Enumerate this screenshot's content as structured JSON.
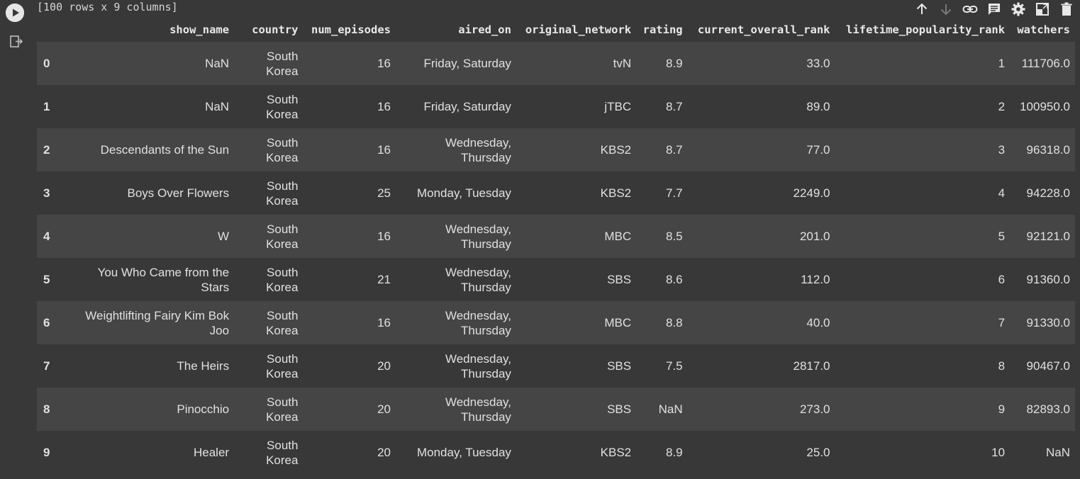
{
  "summary": "[100 rows x 9 columns]",
  "toolbar": {
    "icons": [
      "arrow-up-icon",
      "arrow-down-icon",
      "link-icon",
      "comment-icon",
      "settings-icon",
      "mirror-cell-icon",
      "delete-icon"
    ]
  },
  "columns": {
    "show_name": "show_name",
    "country": "country",
    "num_episodes": "num_episodes",
    "aired_on": "aired_on",
    "original_network": "original_network",
    "rating": "rating",
    "current_overall_rank": "current_overall_rank",
    "lifetime_popularity_rank": "lifetime_popularity_rank",
    "watchers": "watchers"
  },
  "rows": [
    {
      "index": "0",
      "show_name": "NaN",
      "country": "South Korea",
      "num_episodes": "16",
      "aired_on": "Friday, Saturday",
      "original_network": "tvN",
      "rating": "8.9",
      "current_overall_rank": "33.0",
      "lifetime_popularity_rank": "1",
      "watchers": "111706.0"
    },
    {
      "index": "1",
      "show_name": "NaN",
      "country": "South Korea",
      "num_episodes": "16",
      "aired_on": "Friday, Saturday",
      "original_network": "jTBC",
      "rating": "8.7",
      "current_overall_rank": "89.0",
      "lifetime_popularity_rank": "2",
      "watchers": "100950.0"
    },
    {
      "index": "2",
      "show_name": "Descendants of the Sun",
      "country": "South Korea",
      "num_episodes": "16",
      "aired_on": "Wednesday, Thursday",
      "original_network": "KBS2",
      "rating": "8.7",
      "current_overall_rank": "77.0",
      "lifetime_popularity_rank": "3",
      "watchers": "96318.0"
    },
    {
      "index": "3",
      "show_name": "Boys Over Flowers",
      "country": "South Korea",
      "num_episodes": "25",
      "aired_on": "Monday, Tuesday",
      "original_network": "KBS2",
      "rating": "7.7",
      "current_overall_rank": "2249.0",
      "lifetime_popularity_rank": "4",
      "watchers": "94228.0"
    },
    {
      "index": "4",
      "show_name": "W",
      "country": "South Korea",
      "num_episodes": "16",
      "aired_on": "Wednesday, Thursday",
      "original_network": "MBC",
      "rating": "8.5",
      "current_overall_rank": "201.0",
      "lifetime_popularity_rank": "5",
      "watchers": "92121.0"
    },
    {
      "index": "5",
      "show_name": "You Who Came from the Stars",
      "country": "South Korea",
      "num_episodes": "21",
      "aired_on": "Wednesday, Thursday",
      "original_network": "SBS",
      "rating": "8.6",
      "current_overall_rank": "112.0",
      "lifetime_popularity_rank": "6",
      "watchers": "91360.0"
    },
    {
      "index": "6",
      "show_name": "Weightlifting Fairy Kim Bok Joo",
      "country": "South Korea",
      "num_episodes": "16",
      "aired_on": "Wednesday, Thursday",
      "original_network": "MBC",
      "rating": "8.8",
      "current_overall_rank": "40.0",
      "lifetime_popularity_rank": "7",
      "watchers": "91330.0"
    },
    {
      "index": "7",
      "show_name": "The Heirs",
      "country": "South Korea",
      "num_episodes": "20",
      "aired_on": "Wednesday, Thursday",
      "original_network": "SBS",
      "rating": "7.5",
      "current_overall_rank": "2817.0",
      "lifetime_popularity_rank": "8",
      "watchers": "90467.0"
    },
    {
      "index": "8",
      "show_name": "Pinocchio",
      "country": "South Korea",
      "num_episodes": "20",
      "aired_on": "Wednesday, Thursday",
      "original_network": "SBS",
      "rating": "NaN",
      "current_overall_rank": "273.0",
      "lifetime_popularity_rank": "9",
      "watchers": "82893.0"
    },
    {
      "index": "9",
      "show_name": "Healer",
      "country": "South Korea",
      "num_episodes": "20",
      "aired_on": "Monday, Tuesday",
      "original_network": "KBS2",
      "rating": "8.9",
      "current_overall_rank": "25.0",
      "lifetime_popularity_rank": "10",
      "watchers": "NaN"
    }
  ]
}
